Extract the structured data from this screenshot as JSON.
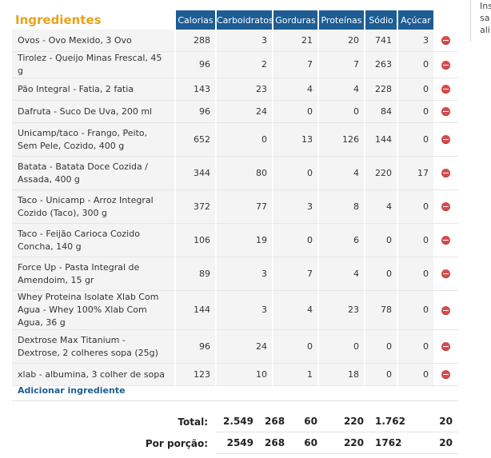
{
  "side_text": [
    "Ins",
    "sa",
    "ali"
  ],
  "section_title": "Ingredientes",
  "columns": [
    "Calorias",
    "Carboidratos",
    "Gorduras",
    "Proteínas",
    "Sódio",
    "Açúcar"
  ],
  "rows": [
    {
      "food": "Ovos - Ovo Mexido, 3 Ovo",
      "lines": 1,
      "values": [
        "288",
        "3",
        "21",
        "20",
        "741",
        "3"
      ]
    },
    {
      "food": "Tirolez - Queijo Minas Frescal, 45 g",
      "lines": 1,
      "values": [
        "96",
        "2",
        "7",
        "7",
        "263",
        "0"
      ]
    },
    {
      "food": "Pão Integral - Fatia, 2 fatia",
      "lines": 1,
      "values": [
        "143",
        "23",
        "4",
        "4",
        "228",
        "0"
      ]
    },
    {
      "food": "Dafruta - Suco De Uva, 200 ml",
      "lines": 1,
      "values": [
        "96",
        "24",
        "0",
        "0",
        "84",
        "0"
      ]
    },
    {
      "food": "Unicamp/taco - Frango, Peito, Sem Pele, Cozido, 400 g",
      "lines": 2,
      "values": [
        "652",
        "0",
        "13",
        "126",
        "144",
        "0"
      ]
    },
    {
      "food": "Batata - Batata Doce Cozida / Assada, 400 g",
      "lines": 2,
      "values": [
        "344",
        "80",
        "0",
        "4",
        "220",
        "17"
      ]
    },
    {
      "food": "Taco - Unicamp - Arroz Integral Cozido (Taco), 300 g",
      "lines": 2,
      "values": [
        "372",
        "77",
        "3",
        "8",
        "4",
        "0"
      ]
    },
    {
      "food": "Taco - Feijão Carioca Cozido Concha, 140 g",
      "lines": 2,
      "values": [
        "106",
        "19",
        "0",
        "6",
        "0",
        "0"
      ]
    },
    {
      "food": "Force Up - Pasta Integral de Amendoim, 15 gr",
      "lines": 2,
      "values": [
        "89",
        "3",
        "7",
        "4",
        "0",
        "0"
      ]
    },
    {
      "food": "Whey Proteina Isolate Xlab Com Agua - Whey 100% Xlab Com Agua, 36 g",
      "lines": 2,
      "values": [
        "144",
        "3",
        "4",
        "23",
        "78",
        "0"
      ]
    },
    {
      "food": "Dextrose Max Titanium - Dextrose, 2 colheres sopa (25g)",
      "lines": 2,
      "values": [
        "96",
        "24",
        "0",
        "0",
        "0",
        "0"
      ]
    },
    {
      "food": "xlab - albumina, 3 colher de sopa",
      "lines": 1,
      "values": [
        "123",
        "10",
        "1",
        "18",
        "0",
        "0"
      ]
    }
  ],
  "add_link": "Adicionar ingrediente",
  "totals": [
    {
      "label": "Total:",
      "values": [
        "2.549",
        "268",
        "60",
        "220",
        "1.762",
        "20"
      ]
    },
    {
      "label": "Por porção:",
      "values": [
        "2549",
        "268",
        "60",
        "220",
        "1762",
        "20"
      ]
    }
  ],
  "colors": {
    "header_bg": "#1d5d94",
    "title": "#e8a21e",
    "remove": "#d94b4b",
    "link": "#1d5d94"
  },
  "icons": {
    "remove": "minus-circle-icon"
  }
}
